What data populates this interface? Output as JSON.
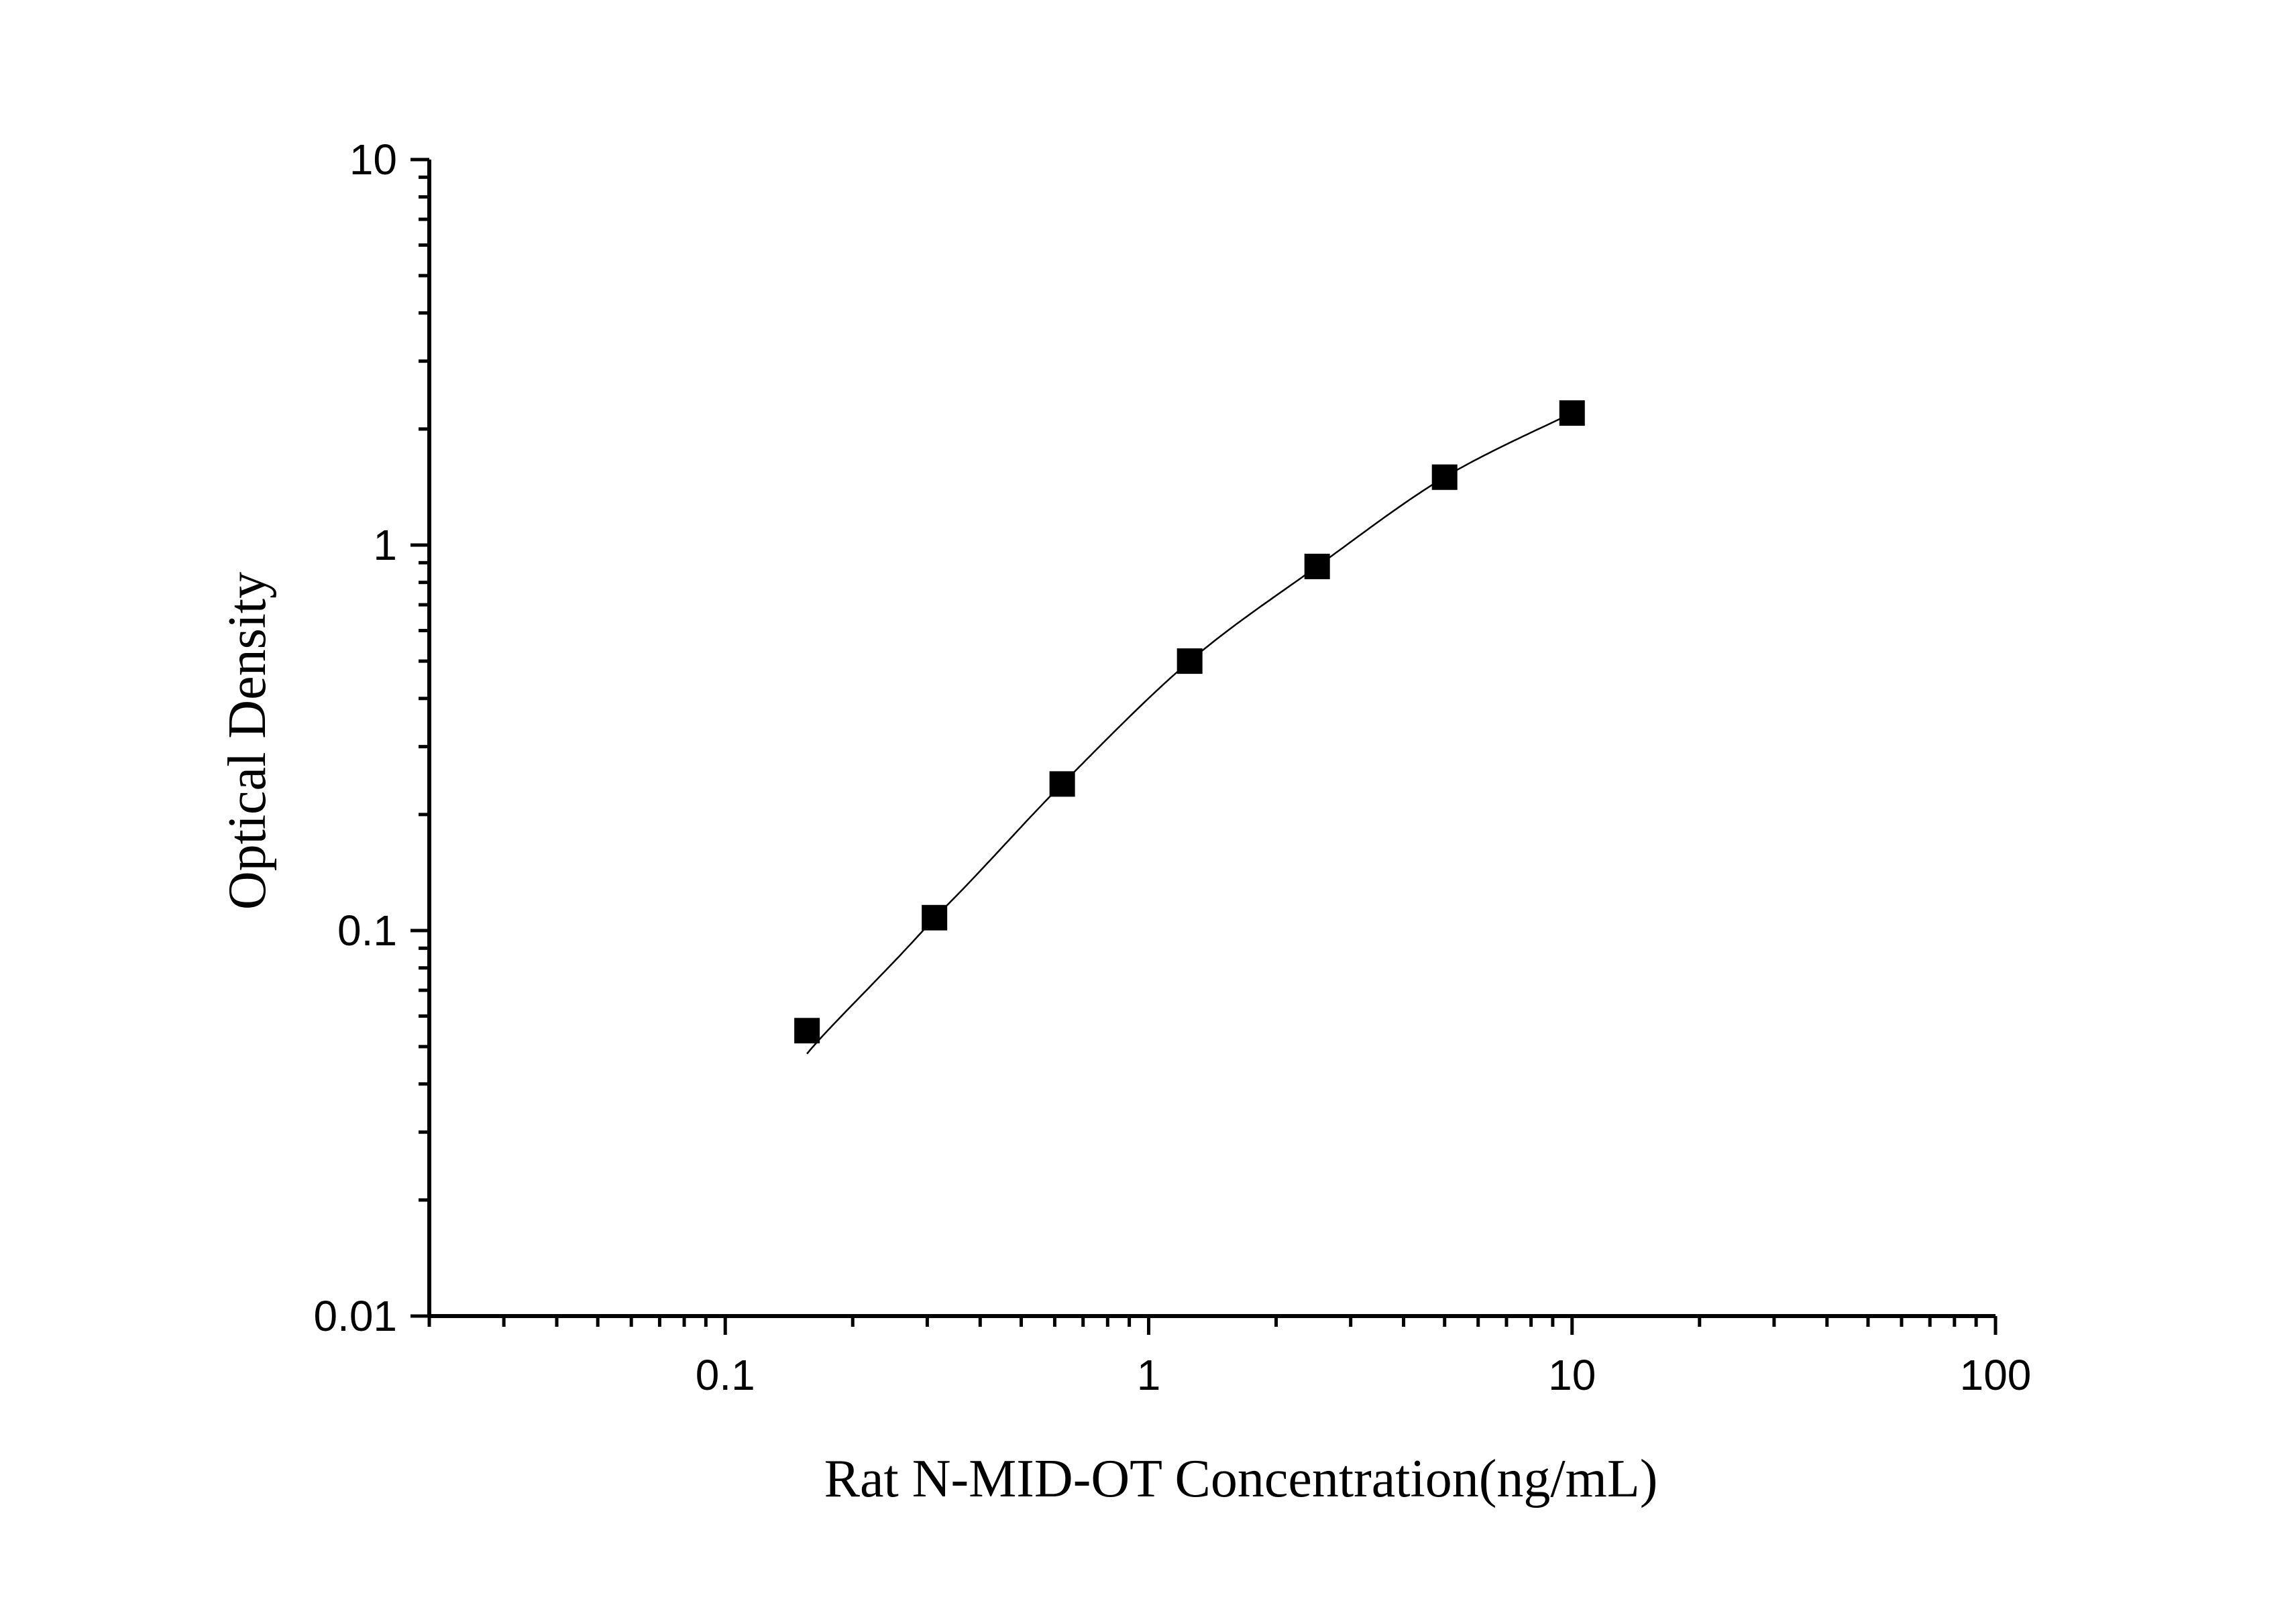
{
  "chart_data": {
    "type": "scatter",
    "xlabel": "Rat N-MID-OT Concentration(ng/mL)",
    "ylabel": "Optical Density",
    "xscale": "log",
    "yscale": "log",
    "xlim": [
      0.02,
      100
    ],
    "ylim": [
      0.01,
      10
    ],
    "grid": false,
    "x_tick_labels": [
      "0.1",
      "1",
      "10",
      "100"
    ],
    "y_tick_labels": [
      "0.01",
      "0.1",
      "1",
      "10"
    ],
    "x_tick_values": [
      0.1,
      1,
      10,
      100
    ],
    "y_tick_values": [
      0.01,
      0.1,
      1,
      10
    ],
    "series": [
      {
        "marker": "square",
        "color": "#000000",
        "x": [
          0.156,
          0.312,
          0.625,
          1.25,
          2.5,
          5,
          10
        ],
        "y": [
          0.055,
          0.108,
          0.24,
          0.5,
          0.88,
          1.5,
          2.2
        ],
        "fit_line": true
      }
    ]
  }
}
